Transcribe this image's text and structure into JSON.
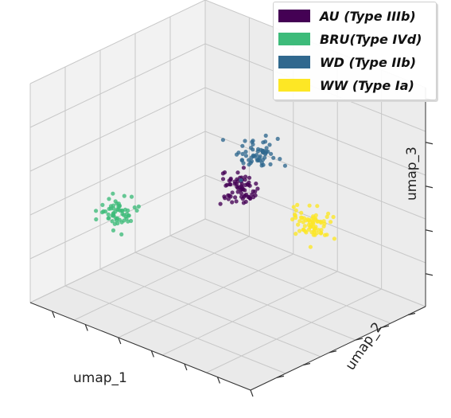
{
  "chart_data": {
    "type": "scatter",
    "projection": "3d",
    "xlabel": "umap_1",
    "ylabel": "umap_2",
    "zlabel": "umap_3",
    "grid": true,
    "legend_position": "top-right",
    "series": [
      {
        "name": "AU (Type IIIb)",
        "color": "#440154",
        "center": [
          5.5,
          5.0,
          5.5
        ],
        "spread": 0.35,
        "count": 70
      },
      {
        "name": "BRU(Type IVd)",
        "color": "#3dbb7a",
        "center": [
          2.0,
          2.5,
          4.0
        ],
        "spread": 0.35,
        "count": 60
      },
      {
        "name": "WD (Type IIb)",
        "color": "#30688e",
        "center": [
          6.0,
          5.5,
          7.0
        ],
        "spread": 0.35,
        "count": 60
      },
      {
        "name": "WW (Type Ia)",
        "color": "#fde725",
        "center": [
          8.0,
          6.0,
          4.5
        ],
        "spread": 0.35,
        "count": 70
      }
    ]
  }
}
